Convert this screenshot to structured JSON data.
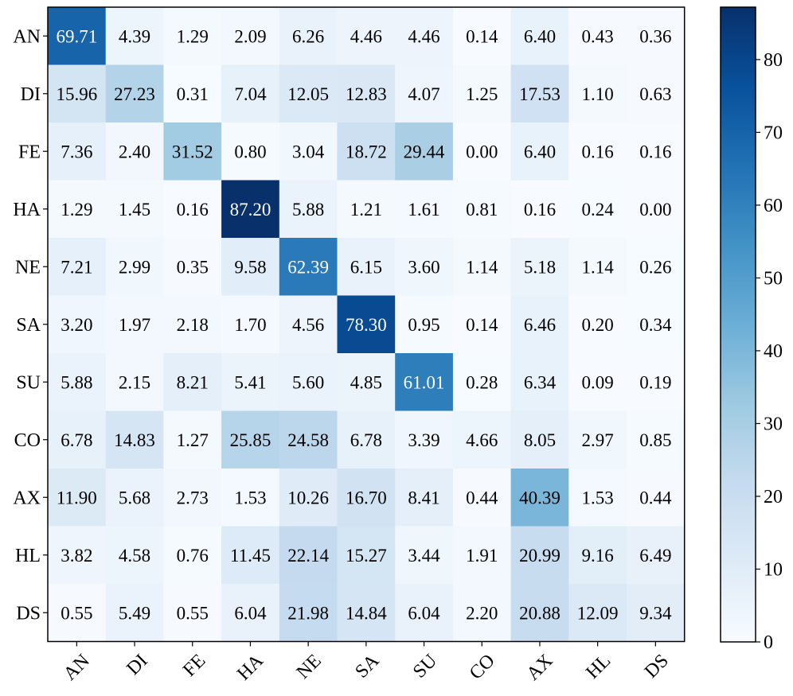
{
  "chart_data": {
    "type": "heatmap",
    "title": "",
    "xlabel": "",
    "ylabel": "",
    "x_categories": [
      "AN",
      "DI",
      "FE",
      "HA",
      "NE",
      "SA",
      "SU",
      "CO",
      "AX",
      "HL",
      "DS"
    ],
    "y_categories": [
      "AN",
      "DI",
      "FE",
      "HA",
      "NE",
      "SA",
      "SU",
      "CO",
      "AX",
      "HL",
      "DS"
    ],
    "values": [
      [
        69.71,
        4.39,
        1.29,
        2.09,
        6.26,
        4.46,
        4.46,
        0.14,
        6.4,
        0.43,
        0.36
      ],
      [
        15.96,
        27.23,
        0.31,
        7.04,
        12.05,
        12.83,
        4.07,
        1.25,
        17.53,
        1.1,
        0.63
      ],
      [
        7.36,
        2.4,
        31.52,
        0.8,
        3.04,
        18.72,
        29.44,
        0.0,
        6.4,
        0.16,
        0.16
      ],
      [
        1.29,
        1.45,
        0.16,
        87.2,
        5.88,
        1.21,
        1.61,
        0.81,
        0.16,
        0.24,
        0.0
      ],
      [
        7.21,
        2.99,
        0.35,
        9.58,
        62.39,
        6.15,
        3.6,
        1.14,
        5.18,
        1.14,
        0.26
      ],
      [
        3.2,
        1.97,
        2.18,
        1.7,
        4.56,
        78.3,
        0.95,
        0.14,
        6.46,
        0.2,
        0.34
      ],
      [
        5.88,
        2.15,
        8.21,
        5.41,
        5.6,
        4.85,
        61.01,
        0.28,
        6.34,
        0.09,
        0.19
      ],
      [
        6.78,
        14.83,
        1.27,
        25.85,
        24.58,
        6.78,
        3.39,
        4.66,
        8.05,
        2.97,
        0.85
      ],
      [
        11.9,
        5.68,
        2.73,
        1.53,
        10.26,
        16.7,
        8.41,
        0.44,
        40.39,
        1.53,
        0.44
      ],
      [
        3.82,
        4.58,
        0.76,
        11.45,
        22.14,
        15.27,
        3.44,
        1.91,
        20.99,
        9.16,
        6.49
      ],
      [
        0.55,
        5.49,
        0.55,
        6.04,
        21.98,
        14.84,
        6.04,
        2.2,
        20.88,
        12.09,
        9.34
      ]
    ],
    "value_format": "2 decimals",
    "colormap": "Blues",
    "vmin": 0,
    "vmax": 87.2,
    "colorbar_ticks": [
      0,
      10,
      20,
      30,
      40,
      50,
      60,
      70,
      80
    ],
    "x_tick_rotation_deg": 45,
    "grid": false
  }
}
